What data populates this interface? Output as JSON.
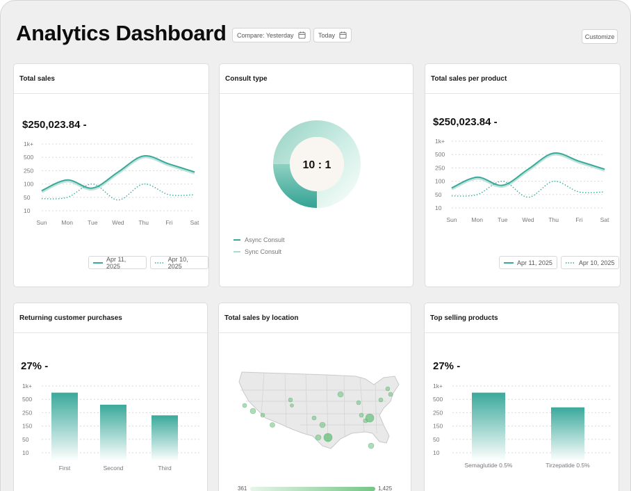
{
  "header": {
    "title": "Analytics Dashboard",
    "compare_label": "Compare: Yesterday",
    "date_label": "Today",
    "customize_label": "Customize"
  },
  "colors": {
    "accent": "#3aa99b",
    "accent_light": "#a8dccf",
    "card_bg": "#ffffff",
    "page_bg": "#efefef"
  },
  "icons": {
    "calendar": "calendar-icon"
  },
  "total_sales": {
    "title": "Total sales",
    "value": "$250,023.84 -",
    "legend": [
      {
        "label": "Apr 11, 2025",
        "style": "solid"
      },
      {
        "label": "Apr 10, 2025",
        "style": "dotted"
      }
    ]
  },
  "consult_type": {
    "title": "Consult type",
    "ratio": "10 : 1",
    "legend": [
      {
        "label": "Async Consult"
      },
      {
        "label": "Sync Consult"
      }
    ]
  },
  "sales_per_product": {
    "title": "Total sales per product",
    "value": "$250,023.84 -",
    "legend": [
      {
        "label": "Apr 11, 2025",
        "style": "solid"
      },
      {
        "label": "Apr 10, 2025",
        "style": "dotted"
      }
    ]
  },
  "returning_purchases": {
    "title": "Returning customer purchases",
    "value": "27% -"
  },
  "sales_by_location": {
    "title": "Total sales by location",
    "scale_min": "361",
    "scale_max": "1,425"
  },
  "top_products": {
    "title": "Top selling products",
    "value": "27% -"
  },
  "chart_data": [
    {
      "id": "total-sales",
      "type": "line",
      "categories": [
        "Sun",
        "Mon",
        "Tue",
        "Wed",
        "Thu",
        "Fri",
        "Sat"
      ],
      "y_tick_labels": [
        "1k+",
        "500",
        "250",
        "100",
        "50",
        "10"
      ],
      "series": [
        {
          "name": "Apr 11, 2025",
          "style": "solid",
          "values": [
            1.5,
            2.3,
            1.7,
            2.9,
            4.1,
            3.5,
            2.9
          ]
        },
        {
          "name": "Apr 10, 2025",
          "style": "dotted",
          "values": [
            0.9,
            1.0,
            2.0,
            0.8,
            2.0,
            1.2,
            1.2
          ]
        }
      ],
      "ylim": [
        0,
        5
      ]
    },
    {
      "id": "consult-type",
      "type": "pie",
      "labels": [
        "Async Consult",
        "Sync Consult"
      ],
      "values": [
        10,
        1
      ],
      "center_label": "10 : 1"
    },
    {
      "id": "sales-per-product",
      "type": "line",
      "categories": [
        "Sun",
        "Mon",
        "Tue",
        "Wed",
        "Thu",
        "Fri",
        "Sat"
      ],
      "y_tick_labels": [
        "1k+",
        "500",
        "250",
        "100",
        "50",
        "10"
      ],
      "series": [
        {
          "name": "Apr 11, 2025",
          "style": "solid",
          "values": [
            1.5,
            2.3,
            1.7,
            2.9,
            4.1,
            3.5,
            2.9
          ]
        },
        {
          "name": "Apr 10, 2025",
          "style": "dotted",
          "values": [
            0.9,
            1.0,
            2.0,
            0.8,
            2.0,
            1.2,
            1.2
          ]
        }
      ],
      "ylim": [
        0,
        5
      ]
    },
    {
      "id": "returning-purchases",
      "type": "bar",
      "categories": [
        "First",
        "Second",
        "Third"
      ],
      "y_tick_labels": [
        "1k+",
        "500",
        "250",
        "150",
        "50",
        "10"
      ],
      "values": [
        4.5,
        3.6,
        2.8
      ],
      "ylim": [
        0,
        5
      ]
    },
    {
      "id": "top-products",
      "type": "bar",
      "categories": [
        "Semaglutide 0.5%",
        "Tirzepatide 0.5%"
      ],
      "y_tick_labels": [
        "1k+",
        "500",
        "250",
        "150",
        "50",
        "10"
      ],
      "values": [
        4.5,
        3.4
      ],
      "ylim": [
        0,
        5
      ]
    }
  ]
}
